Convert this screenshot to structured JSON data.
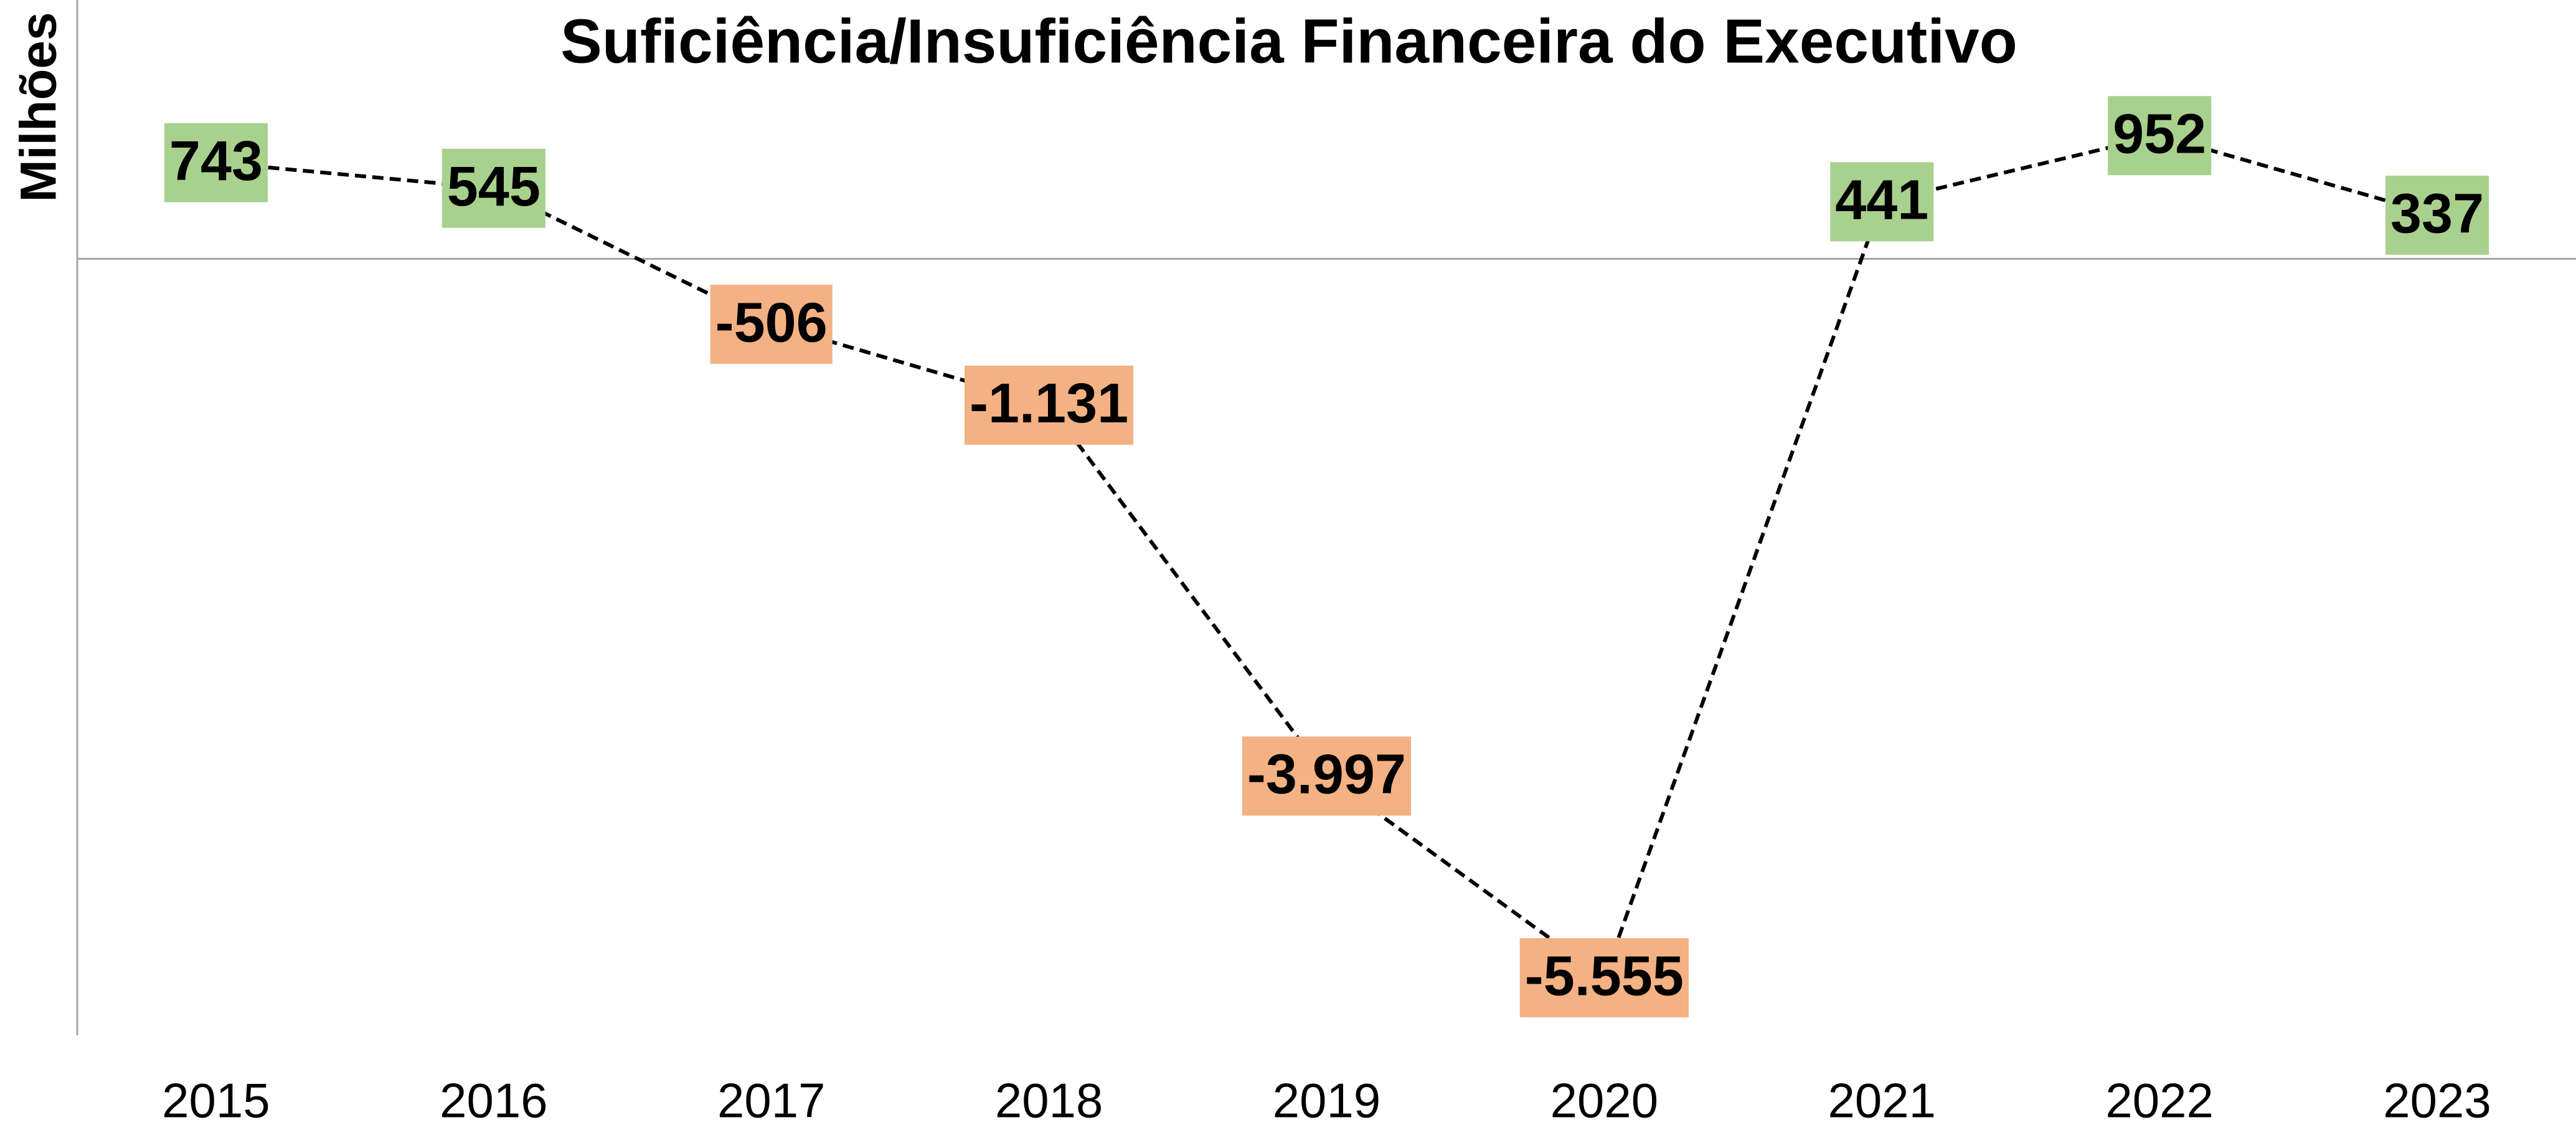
{
  "chart_data": {
    "type": "line",
    "title": "Suficiência/Insuficiência Financeira do Executivo",
    "y_label": "Milhões",
    "categories": [
      "2015",
      "2016",
      "2017",
      "2018",
      "2019",
      "2020",
      "2021",
      "2022",
      "2023"
    ],
    "values": [
      743,
      545,
      -506,
      -1131,
      -3997,
      -5555,
      441,
      952,
      337
    ],
    "value_labels": [
      "743",
      "545",
      "-506",
      "-1.131",
      "-3.997",
      "-5.555",
      "441",
      "952",
      "337"
    ],
    "color": "#000000",
    "positive_color": "#a9d18e",
    "negative_color": "#f4b183",
    "ylim": [
      -6000,
      2000
    ]
  }
}
